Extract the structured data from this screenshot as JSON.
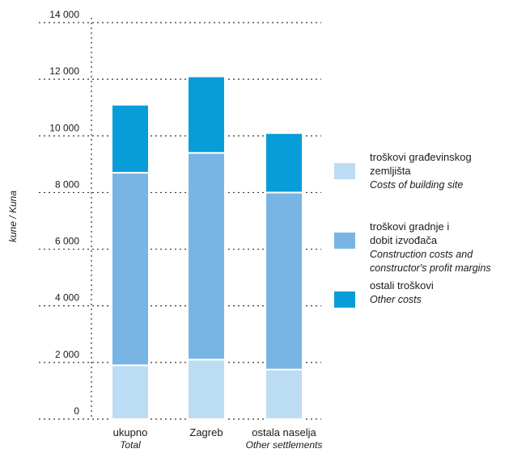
{
  "chart_data": {
    "type": "bar",
    "stacked": true,
    "ylabel": "kune / Kuna",
    "ylim": [
      0,
      14000
    ],
    "yticks": [
      0,
      2000,
      4000,
      6000,
      8000,
      10000,
      12000,
      14000
    ],
    "ytick_labels": [
      "0",
      "2 000",
      "4 000",
      "6 000",
      "8 000",
      "10 000",
      "12 000",
      "14 000"
    ],
    "grid": true,
    "legend_position": "right",
    "categories": [
      {
        "label": "ukupno",
        "label_en": "Total"
      },
      {
        "label": "Zagreb",
        "label_en": ""
      },
      {
        "label": "ostala naselja",
        "label_en": "Other settlements"
      }
    ],
    "series": [
      {
        "name_lines": [
          "troškovi građevinskog",
          "zemljišta"
        ],
        "name_en_lines": [
          "Costs of building site"
        ],
        "color": "#bcdcf3",
        "values": [
          1900,
          2100,
          1750
        ]
      },
      {
        "name_lines": [
          "troškovi gradnje i",
          "dobit izvođača"
        ],
        "name_en_lines": [
          "Construction costs and",
          "constructor's profit margins"
        ],
        "color": "#78b5e4",
        "values": [
          6800,
          7300,
          6250
        ]
      },
      {
        "name_lines": [
          "ostali troškovi"
        ],
        "name_en_lines": [
          "Other costs"
        ],
        "color": "#089cd8",
        "values": [
          2400,
          2700,
          2100
        ]
      }
    ]
  }
}
